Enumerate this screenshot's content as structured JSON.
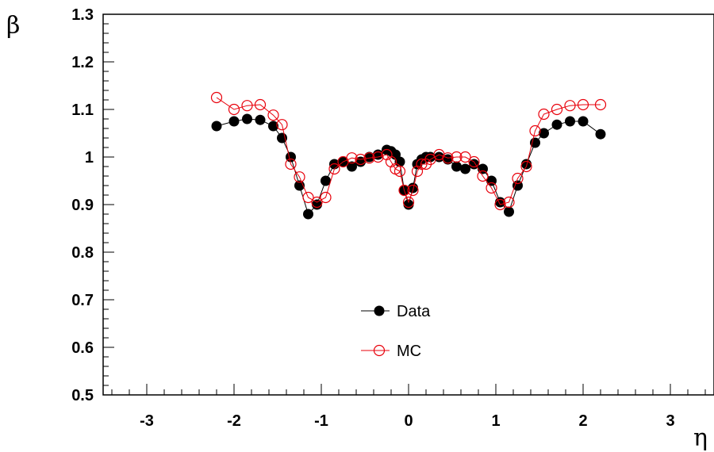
{
  "chart_data": {
    "type": "scatter",
    "xlabel": "η",
    "ylabel": "β",
    "xlim": [
      -3.5,
      3.5
    ],
    "ylim": [
      0.5,
      1.3
    ],
    "x_ticks": [
      "-3",
      "-2",
      "-1",
      "0",
      "1",
      "2",
      "3"
    ],
    "y_ticks": [
      "0.5",
      "0.6",
      "0.7",
      "0.8",
      "0.9",
      "1",
      "1.1",
      "1.2",
      "1.3"
    ],
    "grid": false,
    "legend_position": "center-bottom",
    "series": [
      {
        "name": "Data",
        "marker": "filled-circle",
        "color": "#000000",
        "x": [
          -2.2,
          -2.0,
          -1.85,
          -1.7,
          -1.55,
          -1.45,
          -1.35,
          -1.25,
          -1.15,
          -1.05,
          -0.95,
          -0.85,
          -0.75,
          -0.65,
          -0.55,
          -0.45,
          -0.35,
          -0.25,
          -0.2,
          -0.15,
          -0.1,
          -0.05,
          0.0,
          0.05,
          0.1,
          0.15,
          0.2,
          0.25,
          0.35,
          0.45,
          0.55,
          0.65,
          0.75,
          0.85,
          0.95,
          1.05,
          1.15,
          1.25,
          1.35,
          1.45,
          1.55,
          1.7,
          1.85,
          2.0,
          2.2
        ],
        "y": [
          1.065,
          1.075,
          1.08,
          1.078,
          1.065,
          1.04,
          1.0,
          0.94,
          0.88,
          0.9,
          0.95,
          0.985,
          0.99,
          0.98,
          0.99,
          1.0,
          1.005,
          1.015,
          1.012,
          1.005,
          0.99,
          0.93,
          0.9,
          0.935,
          0.985,
          0.995,
          1.0,
          1.0,
          1.0,
          0.995,
          0.98,
          0.975,
          0.985,
          0.975,
          0.95,
          0.905,
          0.885,
          0.94,
          0.985,
          1.03,
          1.05,
          1.068,
          1.075,
          1.075,
          1.048
        ]
      },
      {
        "name": "MC",
        "marker": "open-circle",
        "color": "#e8000b",
        "x": [
          -2.2,
          -2.0,
          -1.85,
          -1.7,
          -1.55,
          -1.45,
          -1.35,
          -1.25,
          -1.15,
          -1.05,
          -0.95,
          -0.85,
          -0.75,
          -0.65,
          -0.55,
          -0.45,
          -0.35,
          -0.25,
          -0.2,
          -0.15,
          -0.1,
          -0.05,
          0.0,
          0.05,
          0.1,
          0.15,
          0.2,
          0.25,
          0.35,
          0.45,
          0.55,
          0.65,
          0.75,
          0.85,
          0.95,
          1.05,
          1.15,
          1.25,
          1.35,
          1.45,
          1.55,
          1.7,
          1.85,
          2.0,
          2.2
        ],
        "y": [
          1.125,
          1.1,
          1.108,
          1.11,
          1.088,
          1.068,
          0.985,
          0.958,
          0.915,
          0.905,
          0.915,
          0.975,
          0.99,
          0.998,
          0.995,
          0.998,
          1.0,
          1.005,
          0.99,
          0.975,
          0.97,
          0.93,
          0.905,
          0.93,
          0.97,
          0.985,
          0.985,
          0.995,
          1.005,
          0.998,
          1.0,
          1.0,
          0.99,
          0.96,
          0.935,
          0.9,
          0.905,
          0.955,
          0.98,
          1.055,
          1.09,
          1.1,
          1.108,
          1.11,
          1.11
        ]
      }
    ]
  }
}
